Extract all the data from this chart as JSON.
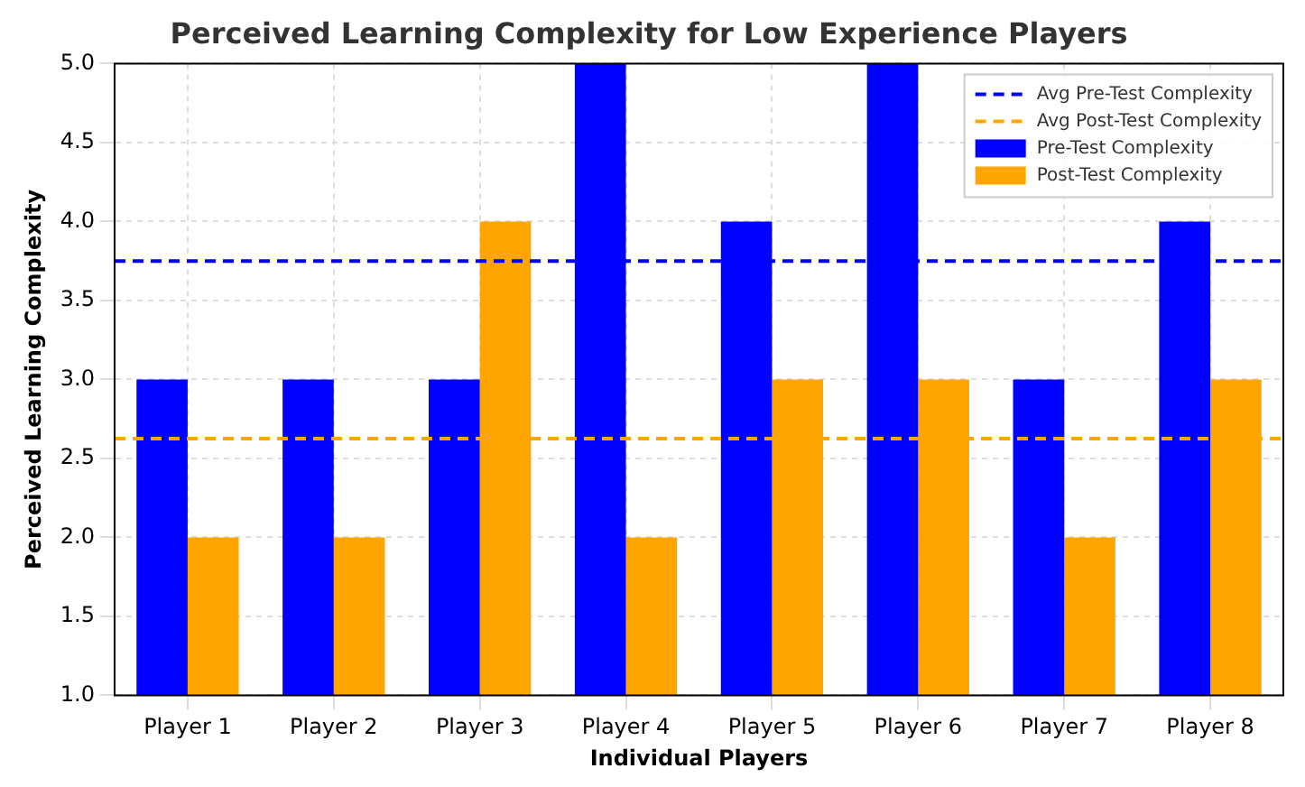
{
  "chart_data": {
    "type": "bar",
    "title": "Perceived Learning Complexity for Low Experience Players",
    "xlabel": "Individual Players",
    "ylabel": "Perceived Learning Complexity",
    "categories": [
      "Player 1",
      "Player 2",
      "Player 3",
      "Player 4",
      "Player 5",
      "Player 6",
      "Player 7",
      "Player 8"
    ],
    "series": [
      {
        "name": "Pre-Test Complexity",
        "color": "#0000ff",
        "values": [
          3,
          3,
          3,
          5,
          4,
          5,
          3,
          4
        ]
      },
      {
        "name": "Post-Test Complexity",
        "color": "#ffa500",
        "values": [
          2,
          2,
          4,
          2,
          3,
          3,
          2,
          3
        ]
      }
    ],
    "ylim": [
      1,
      5
    ],
    "yticks": [
      {
        "value": 1,
        "label": "1.0"
      },
      {
        "value": 1.5,
        "label": "1.5"
      },
      {
        "value": 2,
        "label": "2.0"
      },
      {
        "value": 2.5,
        "label": "2.5"
      },
      {
        "value": 3,
        "label": "3.0"
      },
      {
        "value": 3.5,
        "label": "3.5"
      },
      {
        "value": 4,
        "label": "4.0"
      },
      {
        "value": 4.5,
        "label": "4.5"
      },
      {
        "value": 5,
        "label": "5.0"
      }
    ],
    "ref_lines": [
      {
        "axis": "y",
        "value": 3.75,
        "label": "Avg Pre-Test Complexity",
        "color": "#0000ff",
        "line_style": "dashed"
      },
      {
        "axis": "y",
        "value": 2.625,
        "label": "Avg Post-Test Complexity",
        "color": "#ffa500",
        "line_style": "dashed"
      }
    ],
    "grid": true,
    "legend": "top right"
  }
}
